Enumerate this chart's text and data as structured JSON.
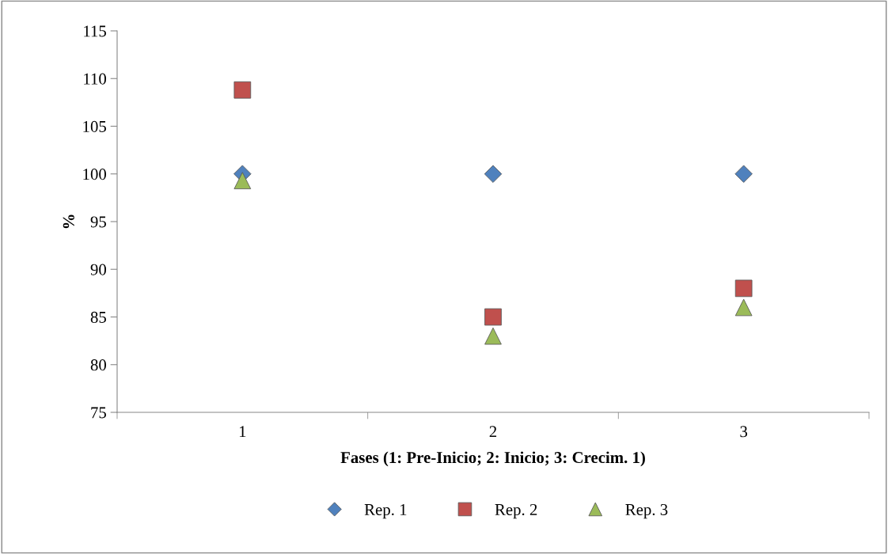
{
  "chart_data": {
    "type": "scatter",
    "xlabel": "Fases (1: Pre-Inicio; 2: Inicio; 3: Crecim. 1)",
    "ylabel": "%",
    "categories": [
      "1",
      "2",
      "3"
    ],
    "series": [
      {
        "name": "Rep. 1",
        "color": "#4f81bd",
        "marker": "diamond",
        "values": [
          100,
          100,
          100
        ]
      },
      {
        "name": "Rep. 2",
        "color": "#c0504d",
        "marker": "square",
        "values": [
          108.8,
          85.0,
          88.0
        ]
      },
      {
        "name": "Rep. 3",
        "color": "#9bbb59",
        "marker": "triangle",
        "values": [
          99.3,
          83.0,
          86.0
        ]
      }
    ],
    "ylim": [
      75,
      115
    ],
    "yticks": [
      75,
      80,
      85,
      90,
      95,
      100,
      105,
      110,
      115
    ],
    "legend": "bottom"
  }
}
